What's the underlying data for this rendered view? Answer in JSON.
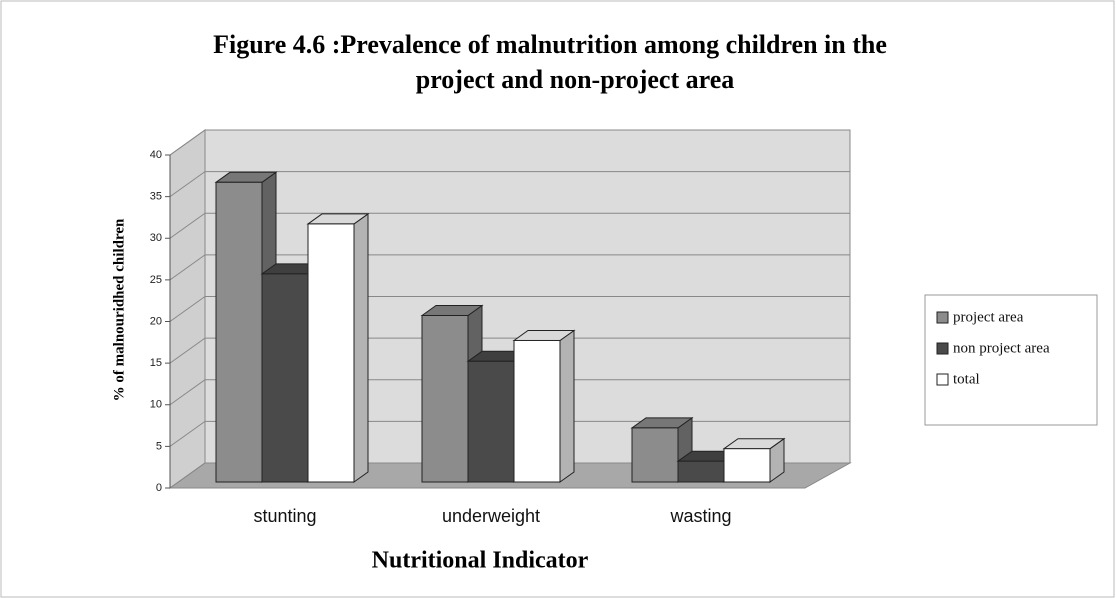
{
  "chart_data": {
    "type": "bar3d",
    "title": [
      "Figure 4.6 :Prevalence of malnutrition among children in the",
      "project and non-project area"
    ],
    "y_label": "% of malnouridhed children",
    "x_label": "Nutritional Indicator",
    "categories": [
      "stunting",
      "underweight",
      "wasting"
    ],
    "series": [
      {
        "name": "project area",
        "color": "#8c8c8c",
        "values": [
          36,
          20,
          6.5
        ]
      },
      {
        "name": "non project area",
        "color": "#4a4a4a",
        "values": [
          25,
          14.5,
          2.5
        ]
      },
      {
        "name": "total",
        "color": "#ffffff",
        "values": [
          31,
          17,
          4
        ]
      }
    ],
    "ylim": [
      0,
      40
    ],
    "yticks": [
      0,
      5,
      10,
      15,
      20,
      25,
      30,
      35,
      40
    ],
    "grid": true,
    "legend": "right"
  }
}
